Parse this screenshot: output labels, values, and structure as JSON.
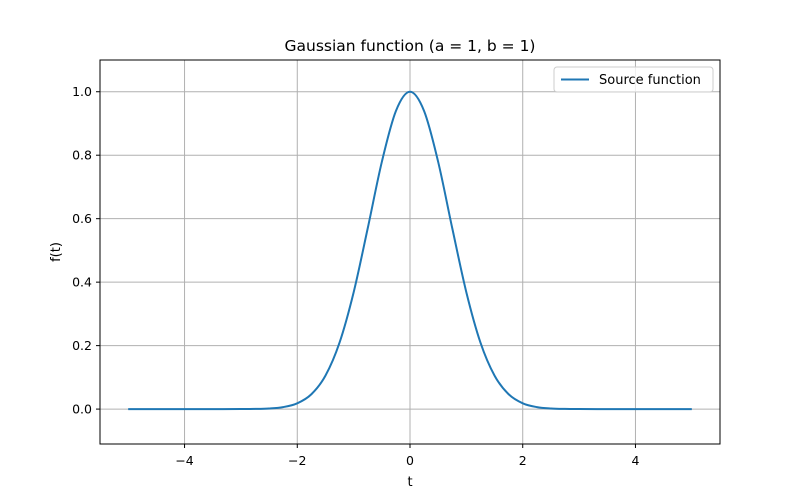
{
  "chart_data": {
    "type": "line",
    "title": "Gaussian function (a = 1, b = 1)",
    "xlabel": "t",
    "ylabel": "f(t)",
    "xlim": [
      -5.5,
      5.5
    ],
    "ylim": [
      -0.11,
      1.1
    ],
    "x_ticks": [
      -4,
      -2,
      0,
      2,
      4
    ],
    "x_tick_labels": [
      "−4",
      "−2",
      "0",
      "2",
      "4"
    ],
    "y_ticks": [
      0.0,
      0.2,
      0.4,
      0.6,
      0.8,
      1.0
    ],
    "y_tick_labels": [
      "0.0",
      "0.2",
      "0.4",
      "0.6",
      "0.8",
      "1.0"
    ],
    "grid": true,
    "legend_position": "top-right",
    "series": [
      {
        "name": "Source function",
        "color": "#1f77b4",
        "x": [
          -5.0,
          -4.5,
          -4.0,
          -3.5,
          -3.0,
          -2.75,
          -2.5,
          -2.25,
          -2.0,
          -1.75,
          -1.5,
          -1.25,
          -1.0,
          -0.75,
          -0.5,
          -0.25,
          0.0,
          0.25,
          0.5,
          0.75,
          1.0,
          1.25,
          1.5,
          1.75,
          2.0,
          2.25,
          2.5,
          2.75,
          3.0,
          3.5,
          4.0,
          4.5,
          5.0
        ],
        "y": [
          0.0,
          0.0,
          0.0,
          0.0,
          0.0001,
          0.0005,
          0.0019,
          0.0063,
          0.0183,
          0.0468,
          0.1054,
          0.2096,
          0.3679,
          0.5698,
          0.7788,
          0.9394,
          1.0,
          0.9394,
          0.7788,
          0.5698,
          0.3679,
          0.2096,
          0.1054,
          0.0468,
          0.0183,
          0.0063,
          0.0019,
          0.0005,
          0.0001,
          0.0,
          0.0,
          0.0,
          0.0
        ]
      }
    ]
  }
}
